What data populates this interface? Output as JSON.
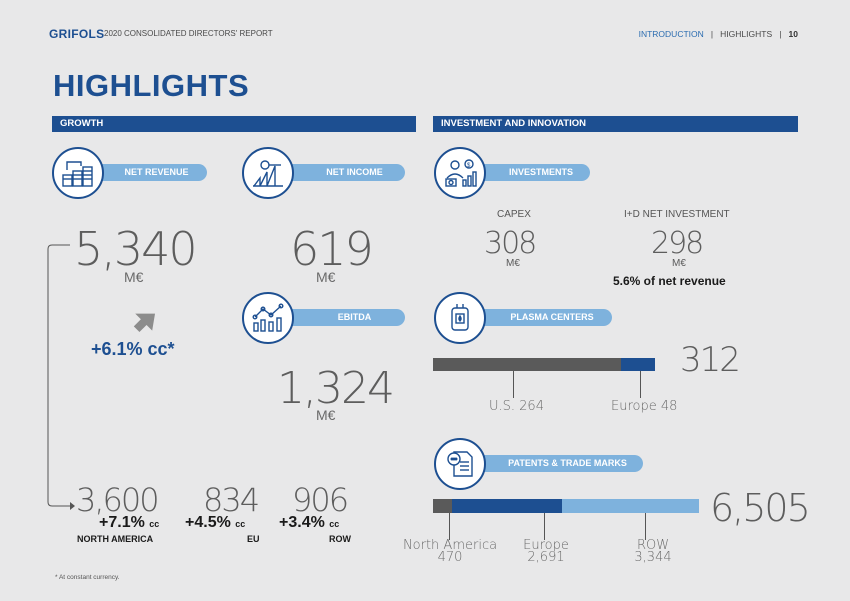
{
  "header": {
    "logo": "GRIFOLS",
    "report": "2020 CONSOLIDATED DIRECTORS' REPORT",
    "crumb_intro": "INTRODUCTION",
    "crumb_sep": "|",
    "crumb_highlights": "HIGHLIGHTS",
    "page_number": "10"
  },
  "title": "HIGHLIGHTS",
  "growth": {
    "bar_label": "GROWTH",
    "net_revenue": {
      "label": "NET REVENUE",
      "value": "5,340",
      "unit": "M€",
      "change": "+6.1% cc*"
    },
    "net_income": {
      "label": "NET INCOME",
      "value": "619",
      "unit": "M€"
    },
    "ebitda": {
      "label": "EBITDA",
      "value": "1,324",
      "unit": "M€"
    },
    "regions": [
      {
        "value": "3,600",
        "pct": "+7.1%",
        "cc": "cc",
        "name": "NORTH AMERICA"
      },
      {
        "value": "834",
        "pct": "+4.5%",
        "cc": "cc",
        "name": "EU"
      },
      {
        "value": "906",
        "pct": "+3.4%",
        "cc": "cc",
        "name": "ROW"
      }
    ],
    "footnote": "* At constant currency."
  },
  "investment": {
    "bar_label": "INVESTMENT AND INNOVATION",
    "investments": {
      "label": "INVESTMENTS",
      "capex_label": "CAPEX",
      "capex_value": "308",
      "capex_unit": "M€",
      "rd_label": "I+D NET INVESTMENT",
      "rd_value": "298",
      "rd_unit": "M€",
      "rd_note": "5.6% of net revenue"
    },
    "plasma": {
      "label": "PLASMA CENTERS",
      "total": "312",
      "us_label": "U.S. 264",
      "us_value": 264,
      "europe_label": "Europe 48",
      "europe_value": 48
    },
    "patents": {
      "label": "PATENTS & TRADE MARKS",
      "total": "6,505",
      "na_label": "North America",
      "na_value_label": "470",
      "na_value": 470,
      "eu_label": "Europe",
      "eu_value_label": "2,691",
      "eu_value": 2691,
      "row_label": "ROW",
      "row_value_label": "3,344",
      "row_value": 3344
    }
  },
  "colors": {
    "navy": "#1d4f91",
    "light_blue": "#7eb2dd",
    "gray_bar": "#5a5a5a"
  }
}
